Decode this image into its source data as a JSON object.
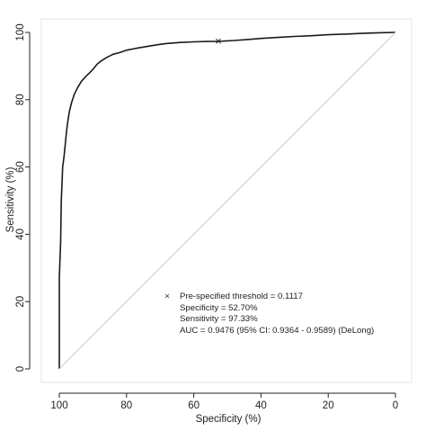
{
  "chart_data": {
    "type": "line",
    "title": "",
    "xlabel": "Specificity (%)",
    "ylabel": "Sensitivity (%)",
    "x_reversed": true,
    "xlim": [
      100,
      0
    ],
    "ylim": [
      0,
      100
    ],
    "xticks": [
      "100",
      "80",
      "60",
      "40",
      "20",
      "0"
    ],
    "yticks": [
      "0",
      "20",
      "40",
      "60",
      "80",
      "100"
    ],
    "grid": false,
    "series": [
      {
        "color": "#1a1a1a",
        "points": [
          [
            100,
            0
          ],
          [
            100,
            27
          ],
          [
            99.6,
            38
          ],
          [
            99.4,
            50
          ],
          [
            99.2,
            55
          ],
          [
            99,
            60
          ],
          [
            98.6,
            63
          ],
          [
            98.2,
            67
          ],
          [
            97.8,
            71
          ],
          [
            97.4,
            74
          ],
          [
            97,
            76.5
          ],
          [
            96.4,
            79
          ],
          [
            95.6,
            81.5
          ],
          [
            94.6,
            83.5
          ],
          [
            93.4,
            85.5
          ],
          [
            92,
            87
          ],
          [
            91,
            88
          ],
          [
            90,
            89
          ],
          [
            88.8,
            90.5
          ],
          [
            87.6,
            91.5
          ],
          [
            86,
            92.5
          ],
          [
            84,
            93.5
          ],
          [
            82,
            94
          ],
          [
            80,
            94.7
          ],
          [
            77,
            95.3
          ],
          [
            74,
            95.8
          ],
          [
            71,
            96.3
          ],
          [
            68,
            96.7
          ],
          [
            64,
            97
          ],
          [
            60,
            97.2
          ],
          [
            56,
            97.3
          ],
          [
            52.7,
            97.33
          ],
          [
            48,
            97.6
          ],
          [
            44,
            97.9
          ],
          [
            40,
            98.2
          ],
          [
            35,
            98.5
          ],
          [
            30,
            98.8
          ],
          [
            25,
            99
          ],
          [
            20,
            99.3
          ],
          [
            15,
            99.5
          ],
          [
            10,
            99.7
          ],
          [
            5,
            99.9
          ],
          [
            0,
            100
          ]
        ]
      },
      {
        "color": "#cccccc",
        "points": [
          [
            100,
            0
          ],
          [
            0,
            100
          ]
        ]
      }
    ],
    "marker": {
      "x": 52.7,
      "y": 97.33,
      "symbol": "×"
    },
    "annotations": [
      "Pre-specified threshold = 0.1117",
      "Specificity = 52.70%",
      "Sensitivity = 97.33%",
      "AUC = 0.9476 (95% CI: 0.9364 - 0.9589) (DeLong)"
    ],
    "legend_symbol": "×",
    "plot_frame_color": "#e6e6e6",
    "axis_color": "#222222"
  }
}
